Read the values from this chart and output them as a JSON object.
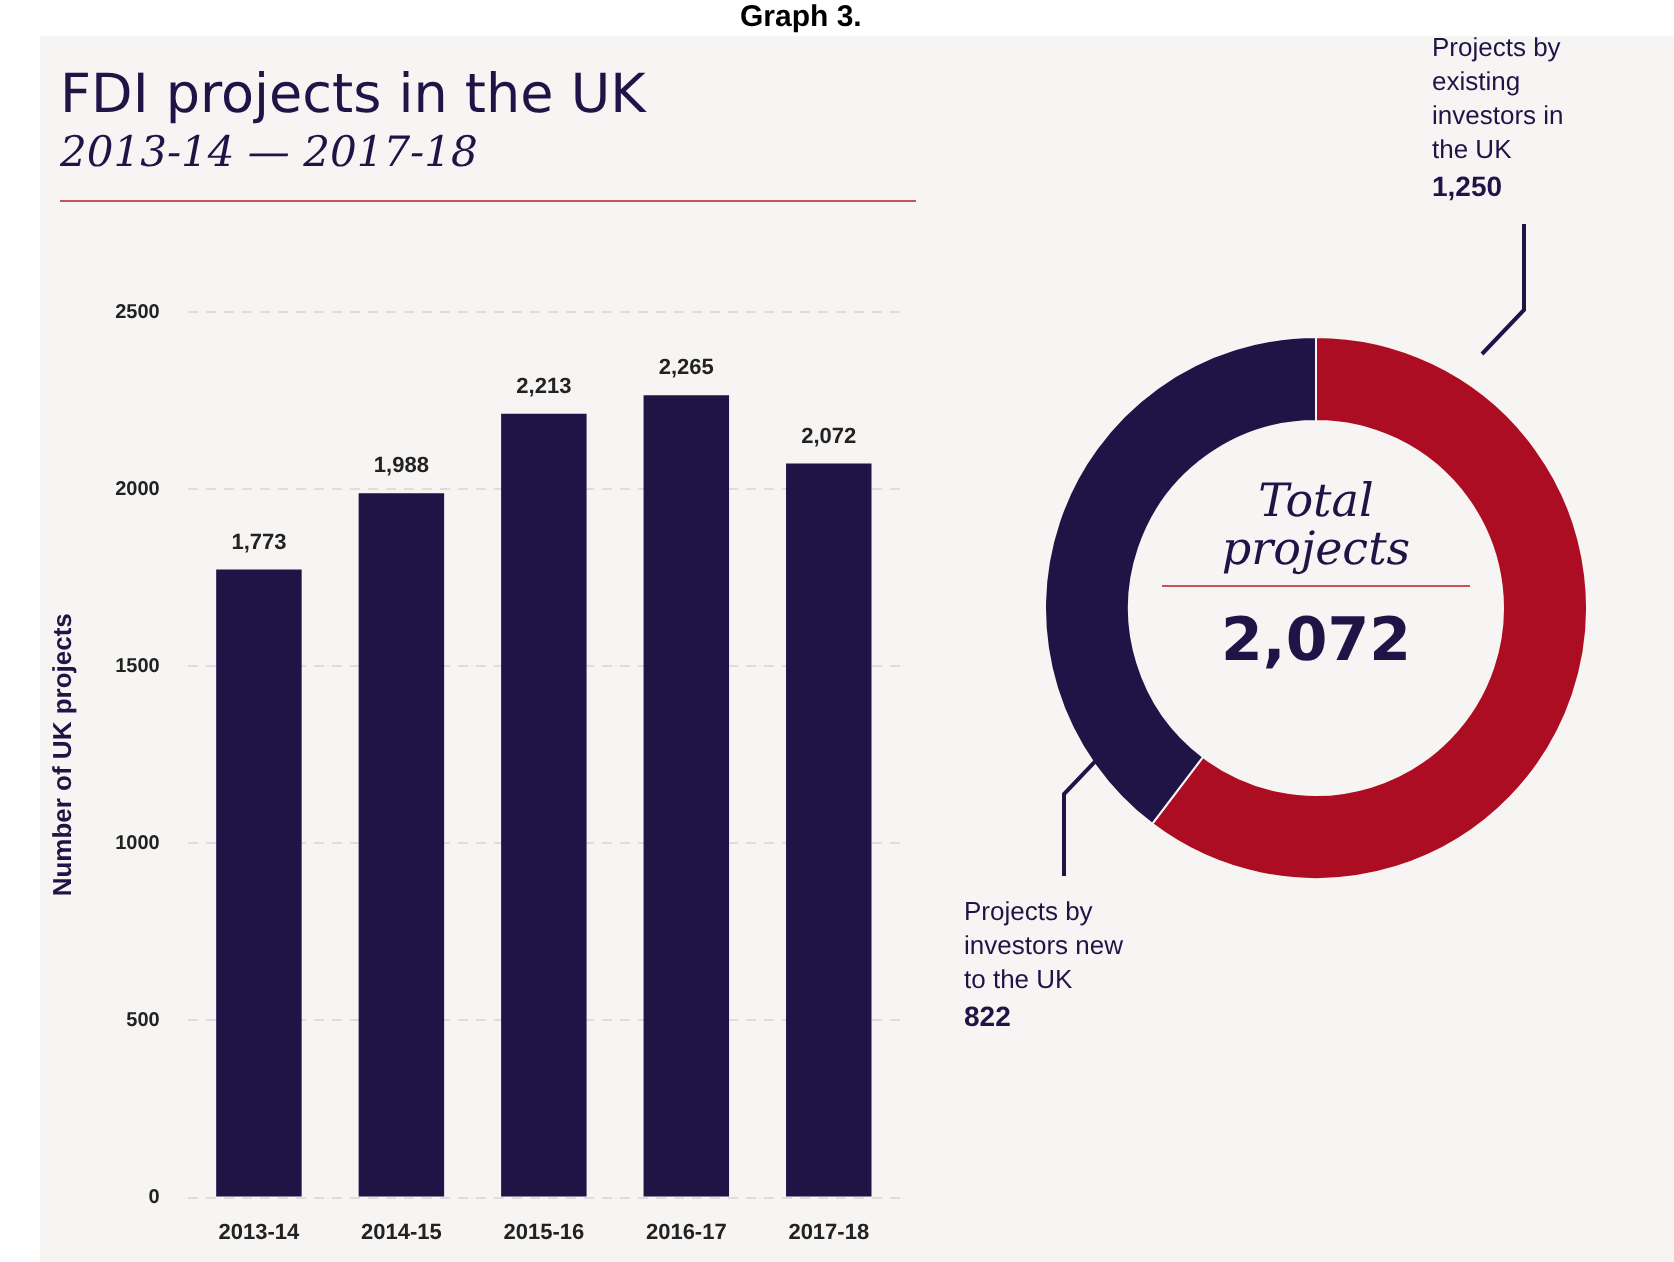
{
  "chart_data": [
    {
      "type": "bar",
      "title": "FDI projects in the UK",
      "subtitle": "2013-14 — 2017-18",
      "ylabel": "Number of UK projects",
      "annotations": [
        "Graph 3."
      ],
      "categories": [
        "2013-14",
        "2014-15",
        "2015-16",
        "2016-17",
        "2017-18"
      ],
      "values": [
        1773,
        1988,
        2213,
        2265,
        2072
      ],
      "color": "#1e1446",
      "ylim": [
        0,
        2500
      ],
      "yticks": [
        0,
        500,
        1000,
        1500,
        2000,
        2500
      ],
      "grid": "y",
      "data_labels": true,
      "value_labels": [
        "1,773",
        "1,988",
        "2,213",
        "2,265",
        "2,072"
      ]
    },
    {
      "type": "donut",
      "categories": [
        "Projects by existing investors in the UK",
        "Projects by investors new to the UK"
      ],
      "values": [
        1250,
        822
      ],
      "colors": [
        "#ad0d22",
        "#1e1446"
      ],
      "value_labels": [
        "1,250",
        "822"
      ],
      "annotations": [
        "Total projects",
        "2,072"
      ]
    }
  ]
}
